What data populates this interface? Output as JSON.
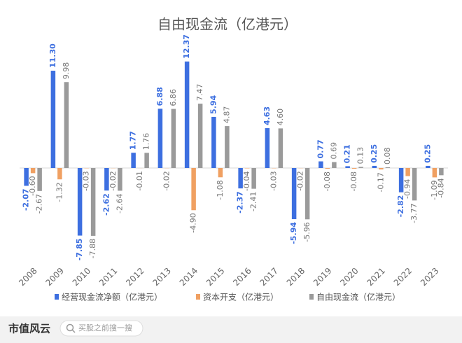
{
  "chart_data": {
    "type": "bar",
    "title": "自由现金流（亿港元）",
    "categories": [
      "2008",
      "2009",
      "2010",
      "2011",
      "2012",
      "2013",
      "2014",
      "2015",
      "2016",
      "2017",
      "2018",
      "2019",
      "2020",
      "2021",
      "2022",
      "2023"
    ],
    "series": [
      {
        "name": "经营现金流净额（亿港元）",
        "color": "#3d6fe0",
        "values": [
          -2.07,
          11.3,
          -7.85,
          -2.62,
          1.77,
          6.88,
          12.37,
          5.94,
          -2.37,
          4.63,
          -5.94,
          0.77,
          0.21,
          0.25,
          -2.82,
          0.25
        ],
        "value_labels": [
          "-2.07",
          "11.30",
          "-7.85",
          "-2.62",
          "1.77",
          "6.88",
          "12.37",
          "5.94",
          "-2.37",
          "4.63",
          "-5.94",
          "0.77",
          "0.21",
          "0.25",
          "-2.82",
          "0.25"
        ]
      },
      {
        "name": "资本开支（亿港元）",
        "color": "#f0a062",
        "values": [
          -0.6,
          -1.32,
          -0.03,
          -0.02,
          -0.01,
          -0.02,
          -4.9,
          -1.08,
          -0.04,
          -0.03,
          -0.02,
          -0.08,
          -0.08,
          -0.17,
          -0.94,
          -1.09
        ],
        "value_labels": [
          "-0.60",
          "-1.32",
          "-0.03",
          "-0.02",
          "-0.01",
          "-0.02",
          "-4.90",
          "-1.08",
          "-0.04",
          "-0.03",
          "-0.02",
          "-0.08",
          "-0.08",
          "-0.17",
          "-0.94",
          "-1.09"
        ]
      },
      {
        "name": "自由现金流（亿港元）",
        "color": "#9a9a9a",
        "values": [
          -2.67,
          9.98,
          -7.88,
          -2.64,
          1.76,
          6.86,
          7.47,
          4.87,
          -2.41,
          4.6,
          -5.96,
          0.69,
          0.13,
          0.08,
          -3.77,
          -0.84
        ],
        "value_labels": [
          "-2.67",
          "9.98",
          "-7.88",
          "-2.64",
          "1.76",
          "6.86",
          "7.47",
          "4.87",
          "-2.41",
          "4.60",
          "-5.96",
          "0.69",
          "0.13",
          "0.08",
          "-3.77",
          "-0.84"
        ]
      }
    ]
  },
  "footer": {
    "brand": "市值风云",
    "search": "买股之前搜一搜"
  }
}
